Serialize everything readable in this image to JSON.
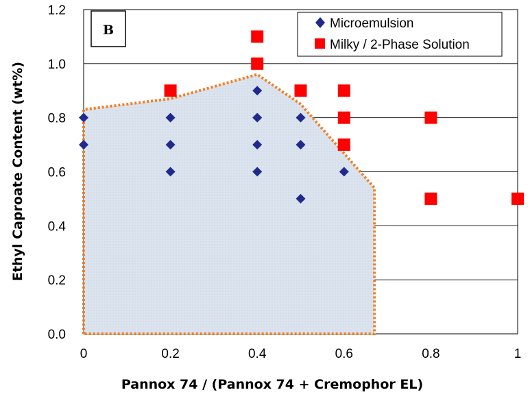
{
  "chart_data": {
    "type": "scatter",
    "panel_label": "B",
    "xlabel": "Pannox 74 / (Pannox 74 + Cremophor EL)",
    "ylabel": "Ethyl Caproate Content (wt%)",
    "xlim": [
      0,
      1
    ],
    "ylim": [
      0,
      1.2
    ],
    "x_ticks": [
      "0",
      "0.2",
      "0.4",
      "0.6",
      "0.8",
      "1"
    ],
    "y_ticks": [
      "0.0",
      "0.2",
      "0.4",
      "0.6",
      "0.8",
      "1.0",
      "1.2"
    ],
    "grid": "horizontal",
    "legend_position": "top-right",
    "series": [
      {
        "name": "Microemulsion",
        "marker": "diamond",
        "color": "#1f2a8c",
        "points": [
          [
            0,
            0.8
          ],
          [
            0,
            0.7
          ],
          [
            0.2,
            0.8
          ],
          [
            0.2,
            0.7
          ],
          [
            0.2,
            0.6
          ],
          [
            0.4,
            0.9
          ],
          [
            0.4,
            0.8
          ],
          [
            0.4,
            0.7
          ],
          [
            0.4,
            0.6
          ],
          [
            0.5,
            0.8
          ],
          [
            0.5,
            0.7
          ],
          [
            0.5,
            0.5
          ],
          [
            0.6,
            0.6
          ]
        ]
      },
      {
        "name": "Milky / 2-Phase Solution",
        "marker": "square",
        "color": "#ff0000",
        "points": [
          [
            0.2,
            0.9
          ],
          [
            0.4,
            1.1
          ],
          [
            0.4,
            1.0
          ],
          [
            0.5,
            0.9
          ],
          [
            0.6,
            0.9
          ],
          [
            0.6,
            0.8
          ],
          [
            0.6,
            0.7
          ],
          [
            0.8,
            0.8
          ],
          [
            0.8,
            0.5
          ],
          [
            1.0,
            0.5
          ]
        ]
      }
    ],
    "region": {
      "border_color": "#f07f22",
      "fill_color": "#dbe4ee",
      "border_style": "dotted",
      "vertices": [
        [
          0,
          0
        ],
        [
          0,
          0.83
        ],
        [
          0.2,
          0.87
        ],
        [
          0.4,
          0.96
        ],
        [
          0.5,
          0.85
        ],
        [
          0.67,
          0.54
        ],
        [
          0.67,
          0
        ],
        [
          0,
          0
        ]
      ]
    }
  }
}
